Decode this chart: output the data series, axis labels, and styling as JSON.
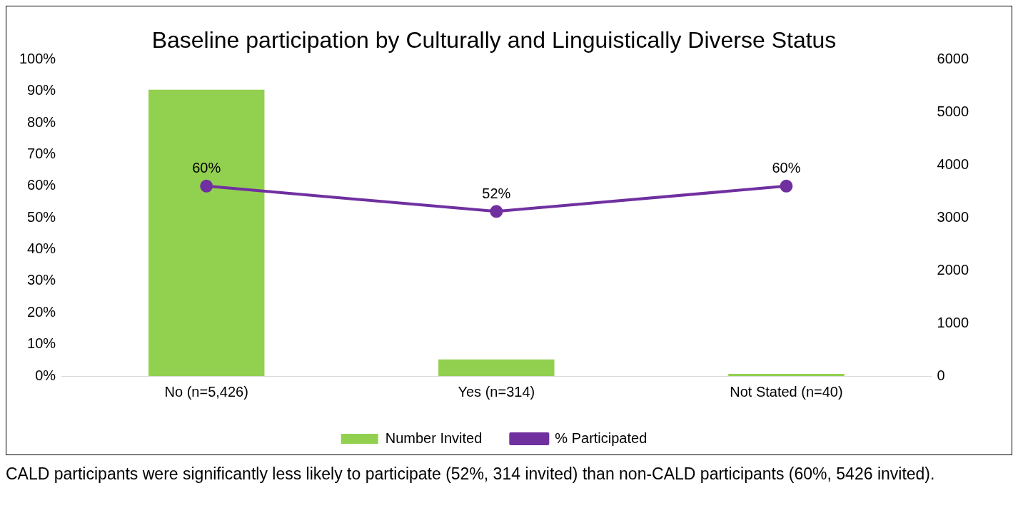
{
  "chart_data": {
    "type": "bar",
    "title": "Baseline participation by Culturally and Linguistically Diverse Status",
    "categories": [
      "No (n=5,426)",
      "Yes (n=314)",
      "Not Stated (n=40)"
    ],
    "series": [
      {
        "name": "Number Invited",
        "axis": "y2",
        "color": "#92d050",
        "values": [
          5426,
          314,
          40
        ]
      },
      {
        "name": "% Participated",
        "type": "line",
        "axis": "y",
        "color": "#7030a0",
        "values": [
          60,
          52,
          60
        ],
        "value_labels": [
          "60%",
          "52%",
          "60%"
        ],
        "marker": "circle",
        "line_style": "solid"
      }
    ],
    "ylim": [
      0,
      100
    ],
    "yticks": [
      {
        "value": 0,
        "label": "0%"
      },
      {
        "value": 10,
        "label": "10%"
      },
      {
        "value": 20,
        "label": "20%"
      },
      {
        "value": 30,
        "label": "30%"
      },
      {
        "value": 40,
        "label": "40%"
      },
      {
        "value": 50,
        "label": "50%"
      },
      {
        "value": 60,
        "label": "60%"
      },
      {
        "value": 70,
        "label": "70%"
      },
      {
        "value": 80,
        "label": "80%"
      },
      {
        "value": 90,
        "label": "90%"
      },
      {
        "value": 100,
        "label": "100%"
      }
    ],
    "y2lim": [
      0,
      6000
    ],
    "y2ticks": [
      0,
      1000,
      2000,
      3000,
      4000,
      5000,
      6000
    ],
    "grid": false,
    "legend": "bottom",
    "annotations": [
      "CALD participants were significantly less likely to participate (52%, 314 invited) than non-CALD participants (60%, 5426 invited)."
    ]
  }
}
